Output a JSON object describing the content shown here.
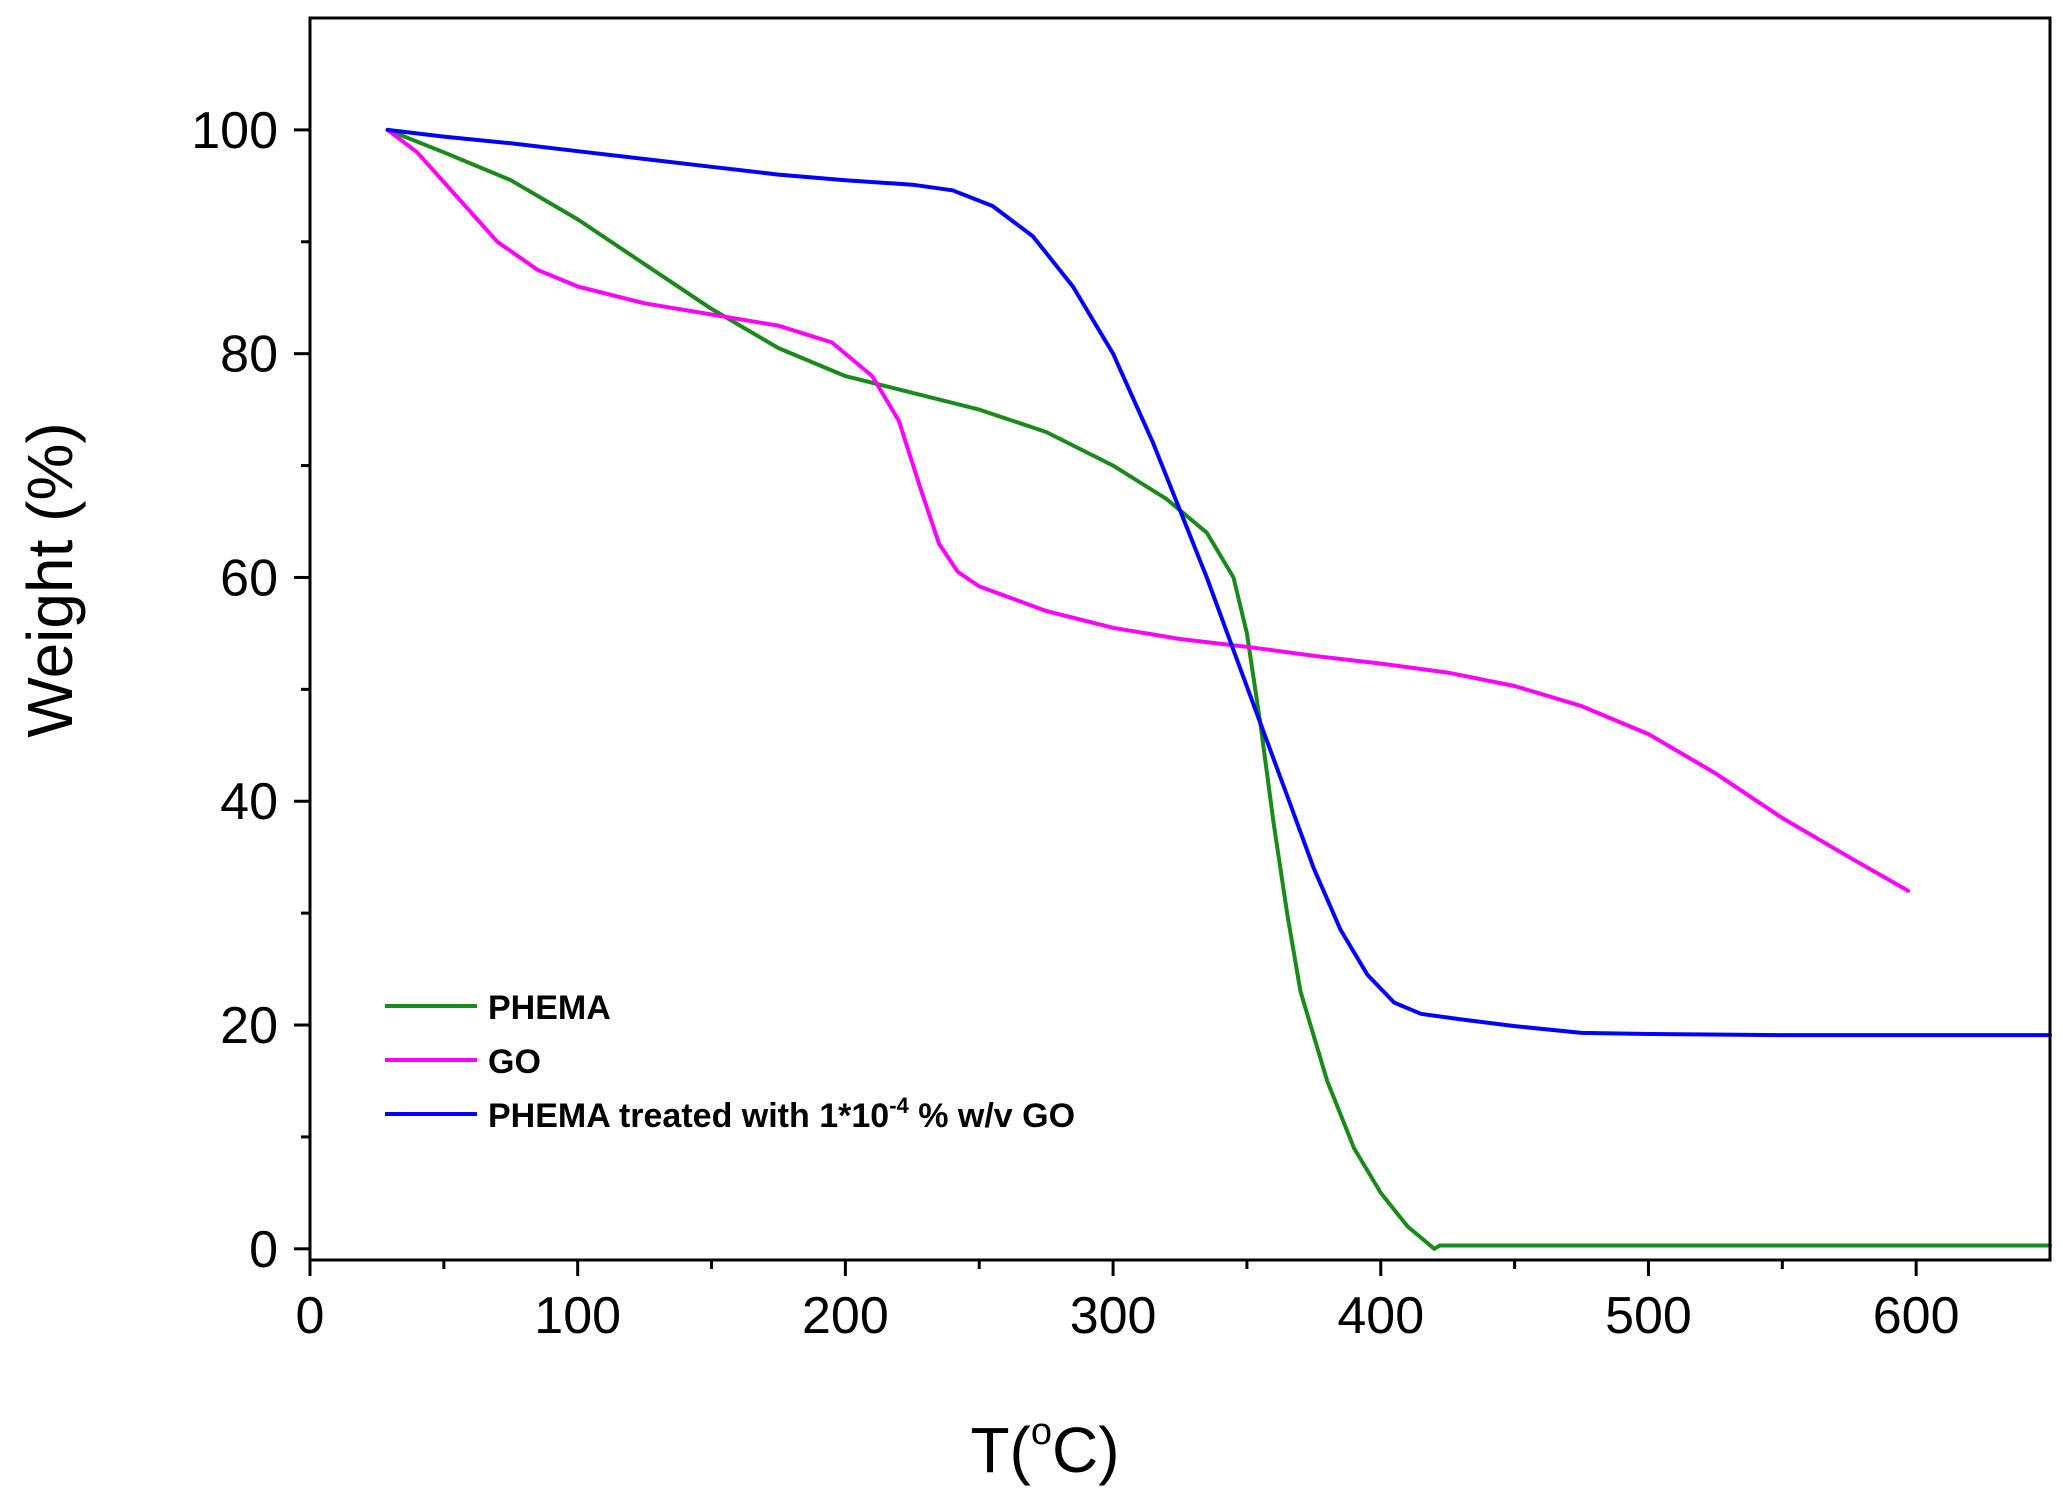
{
  "chart_data": {
    "type": "line",
    "xlabel": {
      "base": "T(",
      "sup": "o",
      "end": "C)"
    },
    "ylabel": "Weight  (%)",
    "xlim": [
      0,
      650
    ],
    "ylim": [
      -1,
      110
    ],
    "xticks": [
      0,
      100,
      200,
      300,
      400,
      500,
      600
    ],
    "yticks": [
      0,
      20,
      40,
      60,
      80,
      100
    ],
    "x_minor_step": 50,
    "y_minor_step": 10,
    "legend_position": "bottom-left",
    "series": [
      {
        "name": "PHEMA",
        "label": "PHEMA",
        "color": "#1a8a1a",
        "points": [
          [
            29,
            100
          ],
          [
            50,
            98
          ],
          [
            75,
            95.5
          ],
          [
            100,
            92
          ],
          [
            125,
            88
          ],
          [
            150,
            84
          ],
          [
            175,
            80.5
          ],
          [
            200,
            78
          ],
          [
            225,
            76.5
          ],
          [
            250,
            75
          ],
          [
            275,
            73
          ],
          [
            300,
            70
          ],
          [
            320,
            67
          ],
          [
            335,
            64
          ],
          [
            345,
            60
          ],
          [
            350,
            55
          ],
          [
            355,
            47
          ],
          [
            360,
            38
          ],
          [
            365,
            30
          ],
          [
            370,
            23
          ],
          [
            380,
            15
          ],
          [
            390,
            9
          ],
          [
            400,
            5
          ],
          [
            410,
            2
          ],
          [
            420,
            0
          ],
          [
            422,
            0.3
          ],
          [
            450,
            0.3
          ],
          [
            500,
            0.3
          ],
          [
            550,
            0.3
          ],
          [
            600,
            0.3
          ],
          [
            650,
            0.3
          ]
        ]
      },
      {
        "name": "GO",
        "label": "GO",
        "color": "#ff00ff",
        "points": [
          [
            29,
            100
          ],
          [
            40,
            98
          ],
          [
            55,
            94
          ],
          [
            70,
            90
          ],
          [
            85,
            87.5
          ],
          [
            100,
            86
          ],
          [
            125,
            84.5
          ],
          [
            150,
            83.5
          ],
          [
            175,
            82.5
          ],
          [
            195,
            81
          ],
          [
            210,
            78
          ],
          [
            220,
            74
          ],
          [
            228,
            68
          ],
          [
            235,
            63
          ],
          [
            242,
            60.5
          ],
          [
            250,
            59.2
          ],
          [
            275,
            57
          ],
          [
            300,
            55.5
          ],
          [
            325,
            54.5
          ],
          [
            350,
            53.8
          ],
          [
            375,
            53
          ],
          [
            400,
            52.3
          ],
          [
            425,
            51.5
          ],
          [
            450,
            50.3
          ],
          [
            475,
            48.5
          ],
          [
            500,
            46
          ],
          [
            525,
            42.5
          ],
          [
            550,
            38.5
          ],
          [
            575,
            35
          ],
          [
            597,
            32
          ]
        ]
      },
      {
        "name": "PHEMA treated with GO",
        "label_base": "PHEMA treated with 1*10",
        "label_sup": "-4",
        "label_end": " % w/v GO",
        "color": "#0000ff",
        "points": [
          [
            29,
            100
          ],
          [
            50,
            99.4
          ],
          [
            75,
            98.8
          ],
          [
            100,
            98.1
          ],
          [
            125,
            97.4
          ],
          [
            150,
            96.7
          ],
          [
            175,
            96
          ],
          [
            200,
            95.5
          ],
          [
            225,
            95.1
          ],
          [
            240,
            94.6
          ],
          [
            255,
            93.2
          ],
          [
            270,
            90.5
          ],
          [
            285,
            86
          ],
          [
            300,
            80
          ],
          [
            315,
            72
          ],
          [
            325,
            66
          ],
          [
            335,
            60
          ],
          [
            345,
            53.5
          ],
          [
            355,
            47
          ],
          [
            365,
            40.5
          ],
          [
            375,
            34
          ],
          [
            385,
            28.5
          ],
          [
            395,
            24.5
          ],
          [
            405,
            22
          ],
          [
            415,
            21
          ],
          [
            430,
            20.5
          ],
          [
            450,
            19.9
          ],
          [
            475,
            19.3
          ],
          [
            500,
            19.2
          ],
          [
            550,
            19.1
          ],
          [
            600,
            19.1
          ],
          [
            650,
            19.1
          ]
        ]
      }
    ]
  }
}
